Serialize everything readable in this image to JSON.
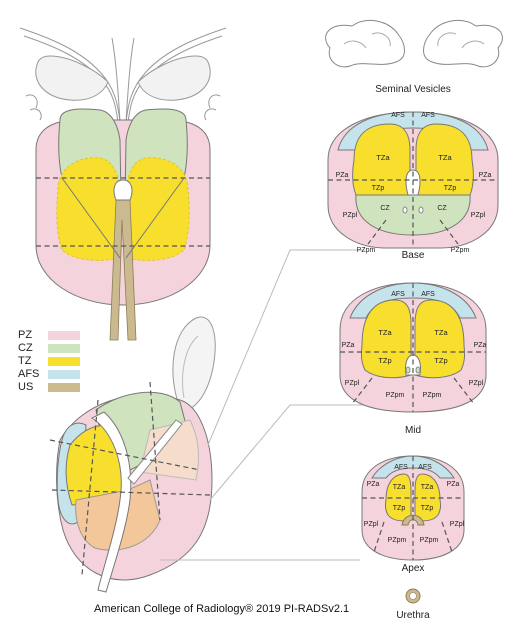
{
  "colors": {
    "PZ": "#f4d3dc",
    "CZ": "#cfe3bf",
    "TZ": "#f8df2e",
    "AFS": "#c5e3ea",
    "US": "#cbb98f",
    "overlap": "#f3c79a"
  },
  "legend": [
    {
      "key": "PZ",
      "label": "PZ"
    },
    {
      "key": "CZ",
      "label": "CZ"
    },
    {
      "key": "TZ",
      "label": "TZ"
    },
    {
      "key": "AFS",
      "label": "AFS"
    },
    {
      "key": "US",
      "label": "US"
    }
  ],
  "titles": {
    "seminal": "Seminal Vesicles",
    "base": "Base",
    "mid": "Mid",
    "apex": "Apex",
    "urethra": "Urethra"
  },
  "base_labels": {
    "afs_l": "AFS",
    "afs_r": "AFS",
    "tza_l": "TZa",
    "tza_r": "TZa",
    "pza_l": "PZa",
    "pza_r": "PZa",
    "tzp_l": "TZp",
    "tzp_r": "TZp",
    "cz_l": "CZ",
    "cz_r": "CZ",
    "pzpl_l": "PZpl",
    "pzpl_r": "PZpl",
    "pzpm_l": "PZpm",
    "pzpm_r": "PZpm"
  },
  "mid_labels": {
    "afs_l": "AFS",
    "afs_r": "AFS",
    "pza_l": "PZa",
    "pza_r": "PZa",
    "tza_l": "TZa",
    "tza_r": "TZa",
    "tzp_l": "TZp",
    "tzp_r": "TZp",
    "pzpl_l": "PZpl",
    "pzpl_r": "PZpl",
    "pzpm_l": "PZpm",
    "pzpm_r": "PZpm"
  },
  "apex_labels": {
    "afs_l": "AFS",
    "afs_r": "AFS",
    "pza_l": "PZa",
    "pza_r": "PZa",
    "tza_l": "TZa",
    "tza_r": "TZa",
    "tzp_l": "TZp",
    "tzp_r": "TZp",
    "pzpl_l": "PZpl",
    "pzpl_r": "PZpl",
    "pzpm_l": "PZpm",
    "pzpm_r": "PZpm"
  },
  "footer": "American College of Radiology® 2019  PI-RADSv2.1"
}
